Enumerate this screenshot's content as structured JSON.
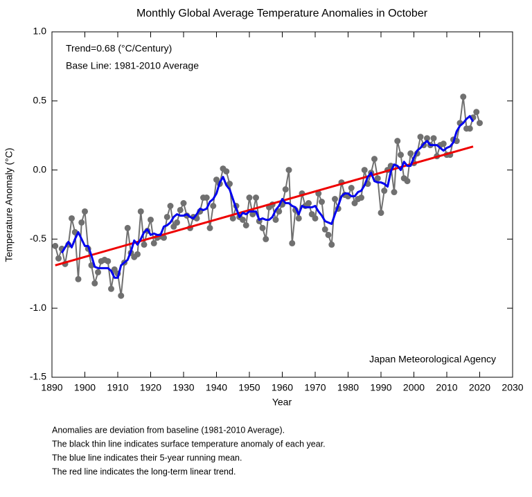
{
  "chart_data": {
    "type": "line",
    "title": "Monthly Global Average Temperature Anomalies in October",
    "xlabel": "Year",
    "ylabel": "Temperature Anomaly (°C)",
    "annotations": [
      "Trend=0.68 (°C/Century)",
      "Base Line: 1981-2010 Average"
    ],
    "source": "Japan Meteorological Agency",
    "notes": [
      "Anomalies are deviation from baseline (1981-2010 Average).",
      "The black thin line indicates surface temperature anomaly of each year.",
      "The blue line indicates their 5-year running mean.",
      "The red line indicates the long-term linear trend."
    ],
    "xlim": [
      1890,
      2030
    ],
    "xticks": [
      1890,
      1900,
      1910,
      1920,
      1930,
      1940,
      1950,
      1960,
      1970,
      1980,
      1990,
      2000,
      2010,
      2020,
      2030
    ],
    "ylim": [
      -1.5,
      1.0
    ],
    "yticks": [
      -1.5,
      {
        "value": -1,
        "label": "-1.0"
      },
      -0.5,
      {
        "value": 0,
        "label": "0.0"
      },
      0.5,
      {
        "value": 1,
        "label": "1.0"
      }
    ],
    "grid": false,
    "x": [
      1891,
      1892,
      1893,
      1894,
      1895,
      1896,
      1897,
      1898,
      1899,
      1900,
      1901,
      1902,
      1903,
      1904,
      1905,
      1906,
      1907,
      1908,
      1909,
      1910,
      1911,
      1912,
      1913,
      1914,
      1915,
      1916,
      1917,
      1918,
      1919,
      1920,
      1921,
      1922,
      1923,
      1924,
      1925,
      1926,
      1927,
      1928,
      1929,
      1930,
      1931,
      1932,
      1933,
      1934,
      1935,
      1936,
      1937,
      1938,
      1939,
      1940,
      1941,
      1942,
      1943,
      1944,
      1945,
      1946,
      1947,
      1948,
      1949,
      1950,
      1951,
      1952,
      1953,
      1954,
      1955,
      1956,
      1957,
      1958,
      1959,
      1960,
      1961,
      1962,
      1963,
      1964,
      1965,
      1966,
      1967,
      1968,
      1969,
      1970,
      1971,
      1972,
      1973,
      1974,
      1975,
      1976,
      1977,
      1978,
      1979,
      1980,
      1981,
      1982,
      1983,
      1984,
      1985,
      1986,
      1987,
      1988,
      1989,
      1990,
      1991,
      1992,
      1993,
      1994,
      1995,
      1996,
      1997,
      1998,
      1999,
      2000,
      2001,
      2002,
      2003,
      2004,
      2005,
      2006,
      2007,
      2008,
      2009,
      2010,
      2011,
      2012,
      2013,
      2014,
      2015,
      2016,
      2017,
      2018,
      2019,
      2020
    ],
    "annual": {
      "color": "#707070",
      "values": [
        -0.55,
        -0.64,
        -0.57,
        -0.68,
        -0.54,
        -0.35,
        -0.45,
        -0.79,
        -0.38,
        -0.3,
        -0.57,
        -0.69,
        -0.82,
        -0.74,
        -0.66,
        -0.65,
        -0.66,
        -0.86,
        -0.72,
        -0.75,
        -0.91,
        -0.67,
        -0.42,
        -0.6,
        -0.63,
        -0.61,
        -0.3,
        -0.54,
        -0.44,
        -0.36,
        -0.53,
        -0.49,
        -0.48,
        -0.49,
        -0.34,
        -0.26,
        -0.41,
        -0.38,
        -0.29,
        -0.24,
        -0.33,
        -0.42,
        -0.34,
        -0.35,
        -0.3,
        -0.2,
        -0.2,
        -0.42,
        -0.26,
        -0.07,
        -0.1,
        0.01,
        -0.01,
        -0.1,
        -0.35,
        -0.26,
        -0.34,
        -0.36,
        -0.4,
        -0.2,
        -0.32,
        -0.2,
        -0.37,
        -0.42,
        -0.5,
        -0.27,
        -0.25,
        -0.36,
        -0.3,
        -0.25,
        -0.14,
        0.0,
        -0.53,
        -0.29,
        -0.35,
        -0.17,
        -0.26,
        -0.24,
        -0.32,
        -0.35,
        -0.17,
        -0.23,
        -0.43,
        -0.47,
        -0.54,
        -0.21,
        -0.28,
        -0.09,
        -0.18,
        -0.19,
        -0.13,
        -0.24,
        -0.21,
        -0.2,
        0.0,
        -0.1,
        -0.02,
        0.08,
        -0.06,
        -0.31,
        -0.15,
        0.0,
        0.03,
        -0.16,
        0.21,
        0.11,
        -0.06,
        -0.08,
        0.12,
        0.05,
        0.12,
        0.24,
        0.18,
        0.23,
        0.18,
        0.23,
        0.1,
        0.18,
        0.19,
        0.11,
        0.11,
        0.22,
        0.21,
        0.34,
        0.53,
        0.3,
        0.3,
        0.38,
        0.42,
        0.34
      ]
    },
    "running_mean": {
      "color": "#0000ee",
      "values": [
        null,
        null,
        -0.6,
        -0.56,
        -0.52,
        -0.56,
        -0.5,
        -0.45,
        -0.5,
        -0.55,
        -0.55,
        -0.62,
        -0.7,
        -0.71,
        -0.71,
        -0.71,
        -0.71,
        -0.73,
        -0.78,
        -0.78,
        -0.69,
        -0.67,
        -0.65,
        -0.59,
        -0.51,
        -0.54,
        -0.5,
        -0.45,
        -0.43,
        -0.47,
        -0.46,
        -0.47,
        -0.47,
        -0.41,
        -0.4,
        -0.38,
        -0.34,
        -0.32,
        -0.33,
        -0.33,
        -0.32,
        -0.34,
        -0.35,
        -0.32,
        -0.28,
        -0.29,
        -0.28,
        -0.23,
        -0.21,
        -0.17,
        -0.09,
        -0.05,
        -0.11,
        -0.14,
        -0.21,
        -0.28,
        -0.34,
        -0.31,
        -0.32,
        -0.3,
        -0.3,
        -0.3,
        -0.36,
        -0.35,
        -0.36,
        -0.36,
        -0.34,
        -0.29,
        -0.26,
        -0.21,
        -0.24,
        -0.24,
        -0.26,
        -0.27,
        -0.32,
        -0.26,
        -0.27,
        -0.27,
        -0.27,
        -0.26,
        -0.3,
        -0.33,
        -0.37,
        -0.38,
        -0.39,
        -0.32,
        -0.26,
        -0.19,
        -0.17,
        -0.17,
        -0.19,
        -0.19,
        -0.16,
        -0.15,
        -0.11,
        -0.05,
        -0.02,
        -0.08,
        -0.09,
        -0.09,
        -0.1,
        -0.12,
        -0.01,
        0.04,
        0.03,
        0.0,
        0.06,
        0.03,
        0.03,
        0.09,
        0.14,
        0.16,
        0.19,
        0.21,
        0.18,
        0.18,
        0.18,
        0.16,
        0.14,
        0.16,
        0.17,
        0.2,
        0.28,
        0.32,
        0.34,
        0.37,
        0.39,
        0.35,
        null,
        null
      ]
    },
    "trend": {
      "color": "#ee0000",
      "x": [
        1891,
        2018
      ],
      "values": [
        -0.69,
        0.17
      ]
    }
  }
}
